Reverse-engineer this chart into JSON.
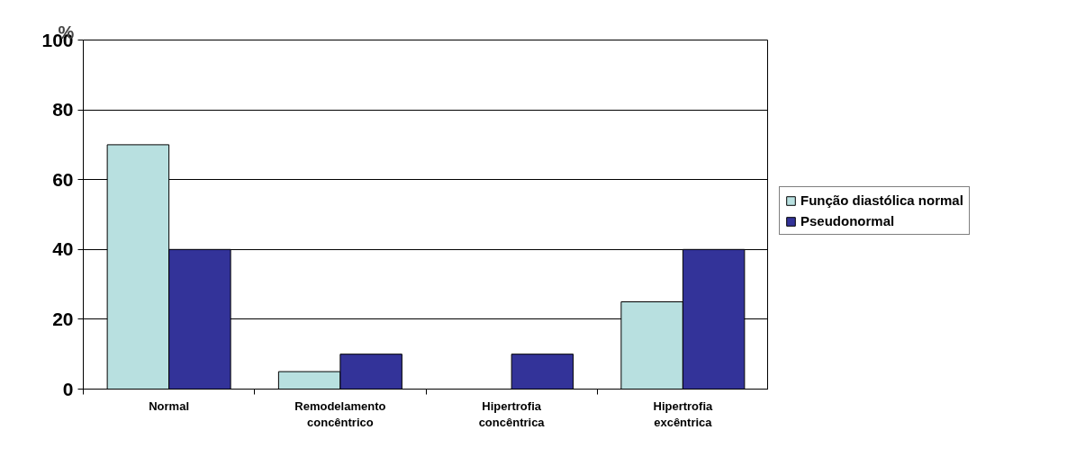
{
  "chart_data": {
    "type": "bar",
    "ylabel": "%",
    "categories": [
      "Normal",
      "Remodelamento concêntrico",
      "Hipertrofia concêntrica",
      "Hipertrofia excêntrica"
    ],
    "series": [
      {
        "name": "Função diastólica normal",
        "color": "#b8e0e0",
        "values": [
          70,
          5,
          0,
          25
        ]
      },
      {
        "name": "Pseudonormal",
        "color": "#333399",
        "values": [
          40,
          10,
          10,
          40
        ]
      }
    ],
    "ylim": [
      0,
      100
    ],
    "yticks": [
      0,
      20,
      40,
      60,
      80,
      100
    ],
    "grid": "y",
    "legend": "right"
  }
}
